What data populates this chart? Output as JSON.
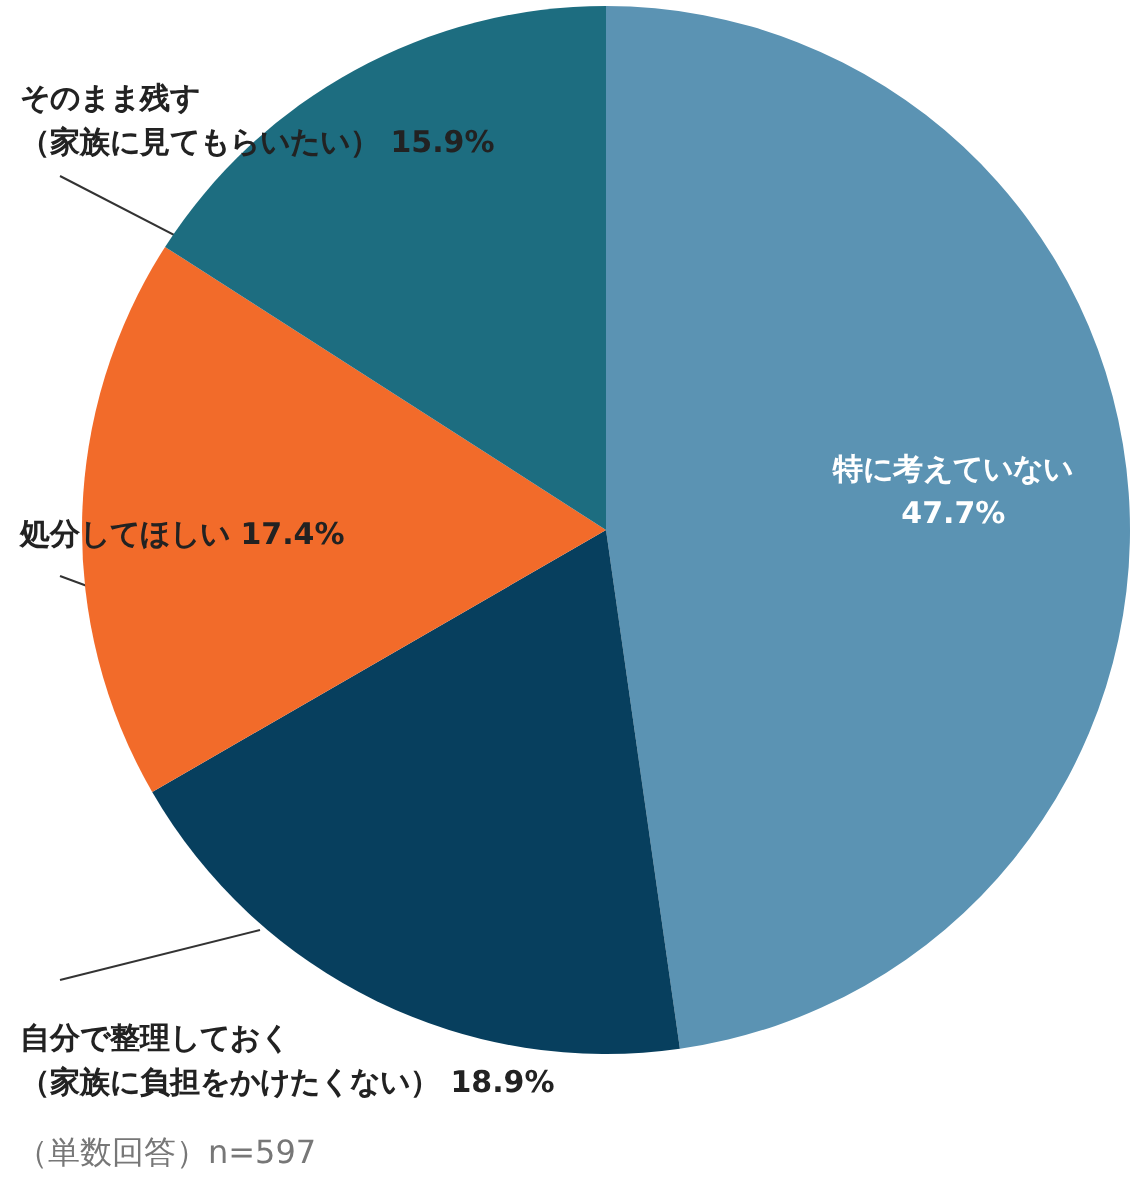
{
  "chart_data": {
    "type": "pie",
    "categories": [
      "特に考えていない",
      "自分で整理しておく（家族に負担をかけたくない）",
      "処分してほしい",
      "そのまま残す（家族に見てもらいたい）"
    ],
    "values": [
      47.7,
      18.9,
      17.4,
      15.9
    ],
    "colors": [
      "#5b93b3",
      "#073f5e",
      "#f26b2a",
      "#1d6d80"
    ],
    "value_labels": [
      "47.7%",
      "18.9%",
      "17.4%",
      "15.9%"
    ],
    "annotations": [
      "（単数回答）n=597"
    ],
    "legend": false
  }
}
